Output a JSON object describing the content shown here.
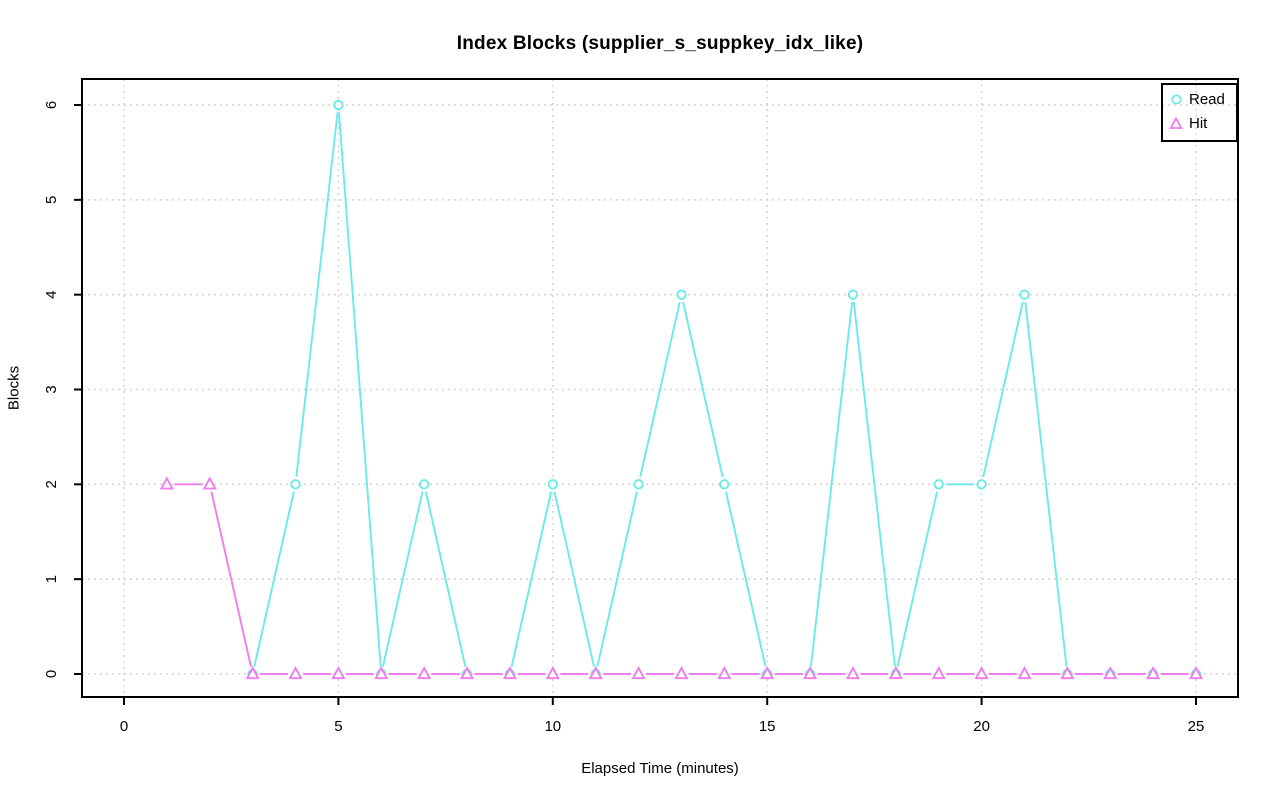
{
  "chart_data": {
    "type": "line",
    "title": "Index Blocks (supplier_s_suppkey_idx_like)",
    "xlabel": "Elapsed Time (minutes)",
    "ylabel": "Blocks",
    "xlim": [
      0,
      25
    ],
    "ylim": [
      0,
      6
    ],
    "x_ticks": [
      0,
      5,
      10,
      15,
      20,
      25
    ],
    "y_ticks": [
      0,
      1,
      2,
      3,
      4,
      5,
      6
    ],
    "grid": "dotted",
    "legend_position": "top-right",
    "series": [
      {
        "name": "Read",
        "marker": "circle",
        "color": "#6beaea",
        "x": [
          3,
          4,
          5,
          6,
          7,
          8,
          9,
          10,
          11,
          12,
          13,
          14,
          15,
          16,
          17,
          18,
          19,
          20,
          21,
          22,
          23,
          24,
          25
        ],
        "y": [
          0,
          2,
          6,
          0,
          2,
          0,
          0,
          2,
          0,
          2,
          4,
          2,
          0,
          0,
          4,
          0,
          2,
          2,
          4,
          0,
          0,
          0,
          0
        ]
      },
      {
        "name": "Hit",
        "marker": "triangle",
        "color": "#ee7dee",
        "x": [
          1,
          2,
          3,
          4,
          5,
          6,
          7,
          8,
          9,
          10,
          11,
          12,
          13,
          14,
          15,
          16,
          17,
          18,
          19,
          20,
          21,
          22,
          23,
          24,
          25
        ],
        "y": [
          2,
          2,
          0,
          0,
          0,
          0,
          0,
          0,
          0,
          0,
          0,
          0,
          0,
          0,
          0,
          0,
          0,
          0,
          0,
          0,
          0,
          0,
          0,
          0,
          0
        ]
      }
    ],
    "colors": {
      "axis": "#000000",
      "grid": "#d2d2d2",
      "background": "#ffffff",
      "text": "#000000"
    }
  }
}
